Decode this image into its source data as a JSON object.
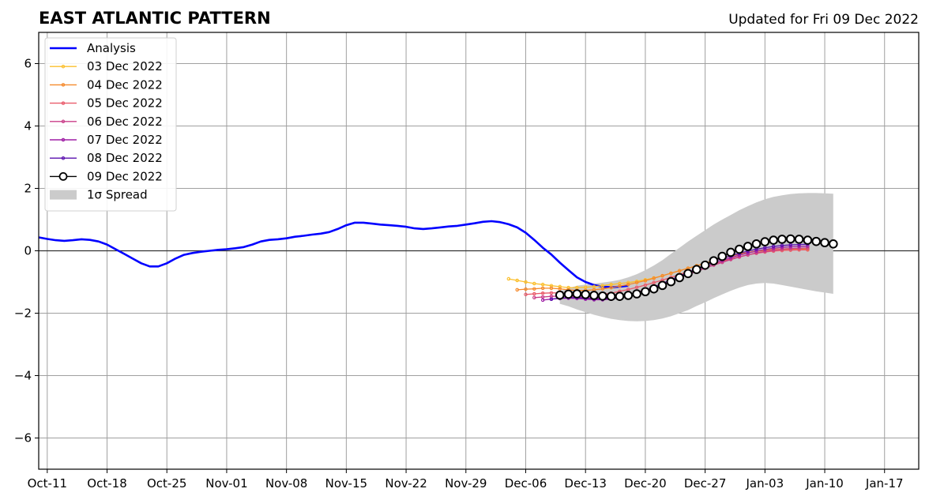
{
  "chart_data": {
    "type": "line",
    "title": "EAST ATLANTIC PATTERN",
    "subtitle": "Updated for Fri 09 Dec 2022",
    "xlabel": "",
    "ylabel": "",
    "xlim": [
      "2022-10-10",
      "2023-01-21"
    ],
    "ylim": [
      -7,
      7
    ],
    "grid": true,
    "legend_position": "top-left",
    "x_ticks": [
      {
        "date": "2022-10-11",
        "label": "Oct-11"
      },
      {
        "date": "2022-10-18",
        "label": "Oct-18"
      },
      {
        "date": "2022-10-25",
        "label": "Oct-25"
      },
      {
        "date": "2022-11-01",
        "label": "Nov-01"
      },
      {
        "date": "2022-11-08",
        "label": "Nov-08"
      },
      {
        "date": "2022-11-15",
        "label": "Nov-15"
      },
      {
        "date": "2022-11-22",
        "label": "Nov-22"
      },
      {
        "date": "2022-11-29",
        "label": "Nov-29"
      },
      {
        "date": "2022-12-06",
        "label": "Dec-06"
      },
      {
        "date": "2022-12-13",
        "label": "Dec-13"
      },
      {
        "date": "2022-12-20",
        "label": "Dec-20"
      },
      {
        "date": "2022-12-27",
        "label": "Dec-27"
      },
      {
        "date": "2023-01-03",
        "label": "Jan-03"
      },
      {
        "date": "2023-01-10",
        "label": "Jan-10"
      },
      {
        "date": "2023-01-17",
        "label": "Jan-17"
      }
    ],
    "y_ticks": [
      {
        "value": 6,
        "label": "6"
      },
      {
        "value": 4,
        "label": "4"
      },
      {
        "value": 2,
        "label": "2"
      },
      {
        "value": 0,
        "label": "0"
      },
      {
        "value": -2,
        "label": "−2"
      },
      {
        "value": -4,
        "label": "−4"
      },
      {
        "value": -6,
        "label": "−6"
      }
    ],
    "analysis": {
      "name": "Analysis",
      "color": "#0000ff",
      "start_date": "2022-10-10",
      "values": [
        0.43,
        0.38,
        0.34,
        0.32,
        0.34,
        0.37,
        0.35,
        0.3,
        0.2,
        0.05,
        -0.1,
        -0.25,
        -0.4,
        -0.5,
        -0.5,
        -0.4,
        -0.25,
        -0.13,
        -0.07,
        -0.03,
        0.0,
        0.03,
        0.05,
        0.08,
        0.12,
        0.2,
        0.3,
        0.35,
        0.37,
        0.4,
        0.45,
        0.48,
        0.52,
        0.55,
        0.6,
        0.7,
        0.82,
        0.9,
        0.9,
        0.87,
        0.84,
        0.82,
        0.8,
        0.77,
        0.72,
        0.7,
        0.72,
        0.75,
        0.78,
        0.8,
        0.84,
        0.88,
        0.93,
        0.95,
        0.92,
        0.85,
        0.75,
        0.58,
        0.35,
        0.1,
        -0.12,
        -0.38,
        -0.62,
        -0.85,
        -1.0,
        -1.1,
        -1.15,
        -1.17,
        -1.15,
        -1.12
      ]
    },
    "spread": {
      "name": "1σ Spread",
      "color": "#cbcbcb",
      "start_date": "2022-12-10",
      "upper": [
        -1.3,
        -1.2,
        -1.12,
        -1.08,
        -1.05,
        -1.02,
        -0.98,
        -0.93,
        -0.85,
        -0.75,
        -0.62,
        -0.47,
        -0.3,
        -0.1,
        0.1,
        0.3,
        0.48,
        0.66,
        0.84,
        1.0,
        1.15,
        1.3,
        1.43,
        1.55,
        1.65,
        1.73,
        1.78,
        1.82,
        1.84,
        1.85,
        1.85,
        1.84,
        1.83
      ],
      "lower": [
        -1.7,
        -1.78,
        -1.88,
        -1.97,
        -2.05,
        -2.12,
        -2.18,
        -2.22,
        -2.25,
        -2.26,
        -2.25,
        -2.22,
        -2.17,
        -2.1,
        -2.0,
        -1.9,
        -1.77,
        -1.65,
        -1.52,
        -1.4,
        -1.28,
        -1.18,
        -1.1,
        -1.05,
        -1.03,
        -1.05,
        -1.1,
        -1.15,
        -1.2,
        -1.25,
        -1.3,
        -1.34,
        -1.38
      ]
    },
    "series": [
      {
        "name": "03 Dec 2022",
        "color": "#fbbf2d",
        "start_date": "2022-12-04",
        "values": [
          -0.9,
          -0.95,
          -1.0,
          -1.05,
          -1.08,
          -1.12,
          -1.15,
          -1.18,
          -1.18,
          -1.17,
          -1.15,
          -1.12,
          -1.08,
          -1.05,
          -1.02,
          -0.98,
          -0.93,
          -0.87,
          -0.8,
          -0.72,
          -0.64,
          -0.56,
          -0.48,
          -0.4,
          -0.32,
          -0.24,
          -0.17,
          -0.1,
          -0.05,
          0.0,
          0.03,
          0.05,
          0.06,
          0.07,
          0.07,
          0.06
        ]
      },
      {
        "name": "04 Dec 2022",
        "color": "#f5892b",
        "start_date": "2022-12-05",
        "values": [
          -1.25,
          -1.23,
          -1.22,
          -1.2,
          -1.2,
          -1.22,
          -1.25,
          -1.27,
          -1.27,
          -1.25,
          -1.22,
          -1.18,
          -1.13,
          -1.08,
          -1.02,
          -0.96,
          -0.88,
          -0.8,
          -0.72,
          -0.64,
          -0.56,
          -0.48,
          -0.4,
          -0.32,
          -0.24,
          -0.17,
          -0.11,
          -0.06,
          -0.02,
          0.01,
          0.03,
          0.04,
          0.05,
          0.05,
          0.05
        ]
      },
      {
        "name": "05 Dec 2022",
        "color": "#e95b6b",
        "start_date": "2022-12-06",
        "values": [
          -1.4,
          -1.38,
          -1.36,
          -1.35,
          -1.35,
          -1.37,
          -1.4,
          -1.42,
          -1.42,
          -1.4,
          -1.36,
          -1.3,
          -1.24,
          -1.17,
          -1.1,
          -1.02,
          -0.94,
          -0.85,
          -0.76,
          -0.67,
          -0.58,
          -0.5,
          -0.42,
          -0.34,
          -0.26,
          -0.19,
          -0.13,
          -0.08,
          -0.04,
          -0.01,
          0.01,
          0.02,
          0.03,
          0.03
        ]
      },
      {
        "name": "06 Dec 2022",
        "color": "#c93d88",
        "start_date": "2022-12-07",
        "values": [
          -1.5,
          -1.48,
          -1.46,
          -1.45,
          -1.45,
          -1.47,
          -1.5,
          -1.52,
          -1.52,
          -1.5,
          -1.46,
          -1.4,
          -1.33,
          -1.25,
          -1.16,
          -1.06,
          -0.96,
          -0.86,
          -0.76,
          -0.66,
          -0.56,
          -0.46,
          -0.37,
          -0.28,
          -0.2,
          -0.13,
          -0.07,
          -0.02,
          0.02,
          0.05,
          0.07,
          0.08,
          0.09
        ]
      },
      {
        "name": "07 Dec 2022",
        "color": "#9f1fa5",
        "start_date": "2022-12-08",
        "values": [
          -1.58,
          -1.55,
          -1.53,
          -1.52,
          -1.53,
          -1.55,
          -1.57,
          -1.57,
          -1.55,
          -1.5,
          -1.44,
          -1.36,
          -1.27,
          -1.17,
          -1.06,
          -0.95,
          -0.84,
          -0.73,
          -0.62,
          -0.51,
          -0.41,
          -0.31,
          -0.22,
          -0.14,
          -0.07,
          -0.01,
          0.04,
          0.08,
          0.11,
          0.13,
          0.14,
          0.15
        ]
      },
      {
        "name": "08 Dec 2022",
        "color": "#5a0fae",
        "start_date": "2022-12-09",
        "values": [
          -1.55,
          -1.52,
          -1.5,
          -1.5,
          -1.52,
          -1.54,
          -1.55,
          -1.54,
          -1.5,
          -1.44,
          -1.36,
          -1.27,
          -1.16,
          -1.05,
          -0.93,
          -0.81,
          -0.69,
          -0.57,
          -0.46,
          -0.35,
          -0.25,
          -0.16,
          -0.08,
          -0.01,
          0.05,
          0.1,
          0.14,
          0.17,
          0.19,
          0.2,
          0.21
        ]
      },
      {
        "name": "09 Dec 2022",
        "color": "#000000",
        "marker_fill": "#ffffff",
        "start_date": "2022-12-10",
        "values": [
          -1.42,
          -1.39,
          -1.38,
          -1.4,
          -1.43,
          -1.45,
          -1.46,
          -1.46,
          -1.43,
          -1.38,
          -1.31,
          -1.22,
          -1.11,
          -0.99,
          -0.86,
          -0.73,
          -0.6,
          -0.46,
          -0.32,
          -0.18,
          -0.05,
          0.05,
          0.14,
          0.22,
          0.29,
          0.34,
          0.37,
          0.38,
          0.37,
          0.34,
          0.3,
          0.26,
          0.22
        ]
      }
    ]
  }
}
